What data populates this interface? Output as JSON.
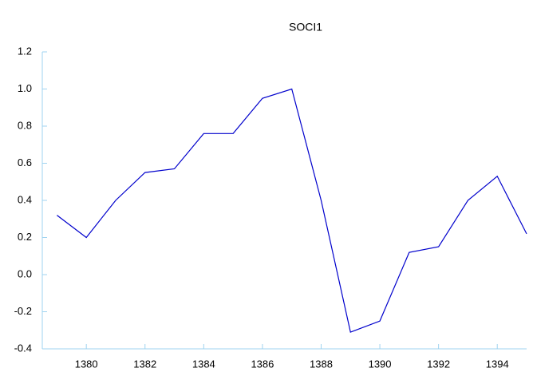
{
  "chart_data": {
    "type": "line",
    "title": "SOCI1",
    "x": [
      1379,
      1380,
      1381,
      1382,
      1383,
      1384,
      1385,
      1386,
      1387,
      1388,
      1389,
      1390,
      1391,
      1392,
      1393,
      1394,
      1395
    ],
    "series": [
      {
        "name": "SOCI1",
        "color": "#0000cc",
        "values": [
          0.32,
          0.2,
          0.4,
          0.55,
          0.57,
          0.76,
          0.76,
          0.95,
          1.0,
          0.4,
          -0.31,
          -0.25,
          0.12,
          0.15,
          0.4,
          0.53,
          0.22
        ]
      }
    ],
    "xlim": [
      1378.5,
      1395
    ],
    "xticks": [
      1380,
      1382,
      1384,
      1386,
      1388,
      1390,
      1392,
      1394
    ],
    "ylim": [
      -0.4,
      1.2
    ],
    "yticks": [
      -0.4,
      -0.2,
      {
        "value": 0.0,
        "label": "0.0"
      },
      0.2,
      0.4,
      0.6,
      0.8,
      {
        "value": 1.0,
        "label": "1.0"
      },
      1.2
    ],
    "grid": false
  }
}
